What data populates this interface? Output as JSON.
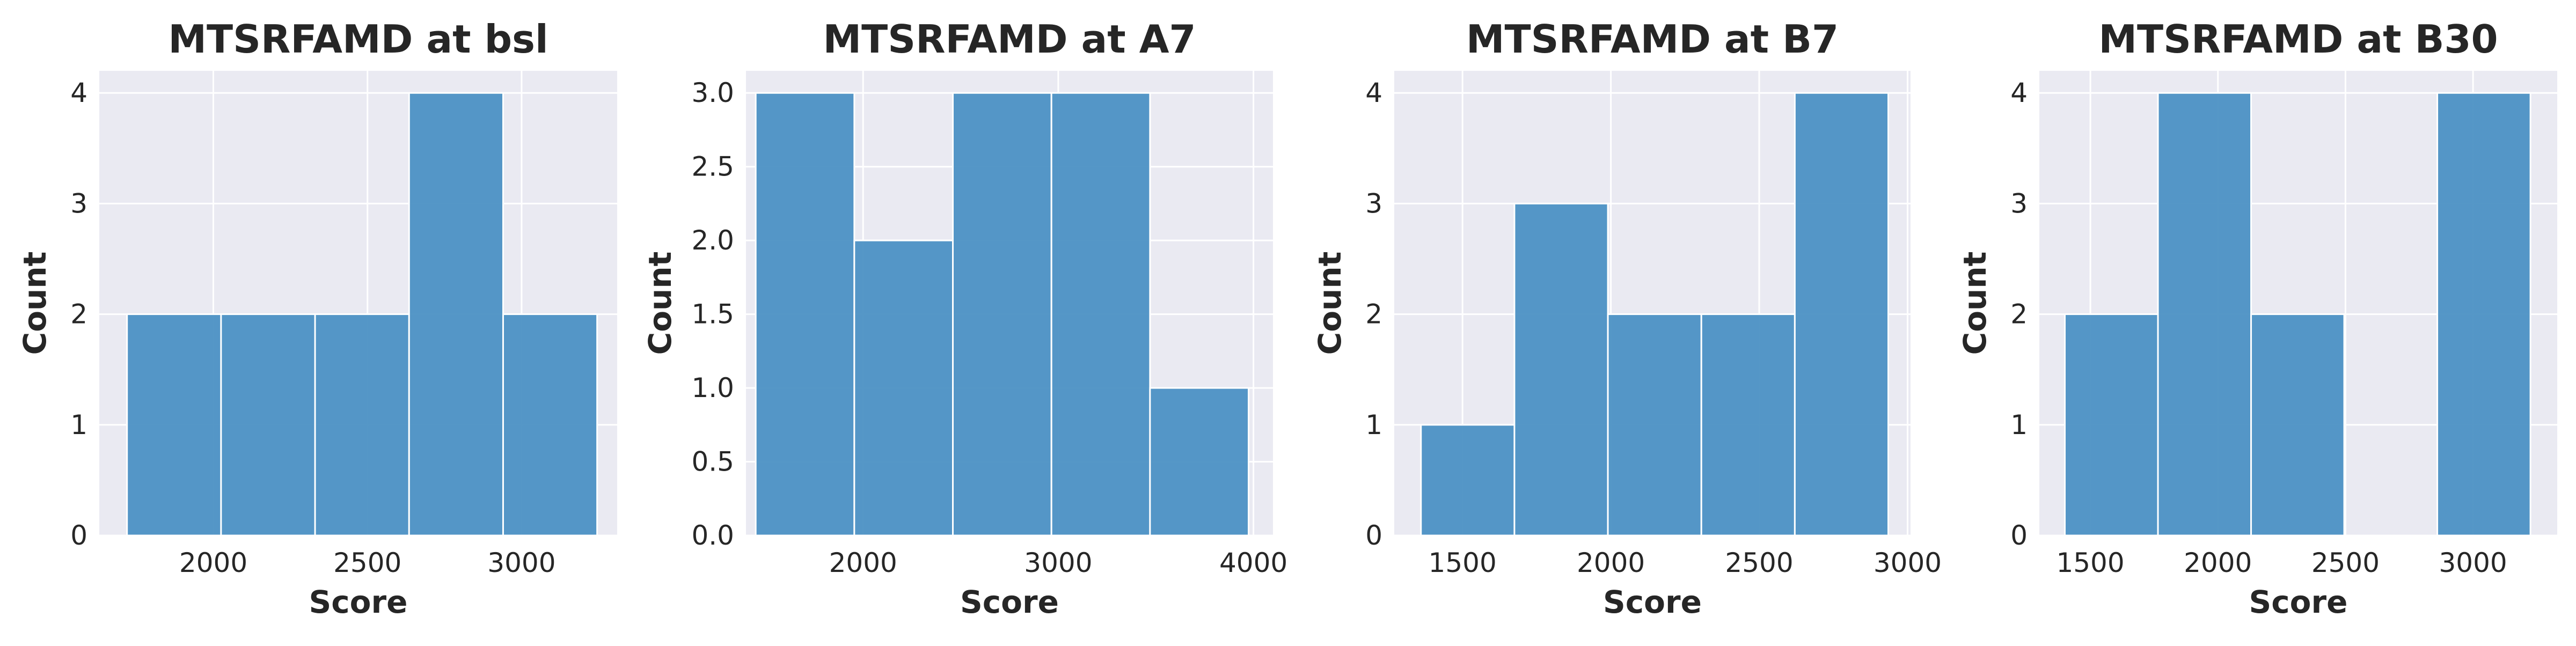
{
  "chart_data": [
    {
      "type": "bar",
      "title": "MTSRFAMD at bsl",
      "xlabel": "Score",
      "ylabel": "Count",
      "xlim": [
        1630,
        3310
      ],
      "ylim": [
        0,
        4.2
      ],
      "x_ticks": [
        2000,
        2500,
        3000
      ],
      "y_ticks": [
        0,
        1,
        2,
        3,
        4
      ],
      "y_tick_labels": [
        "0",
        "1",
        "2",
        "3",
        "4"
      ],
      "bin_edges": [
        1720,
        2025,
        2330,
        2635,
        2940,
        3245
      ],
      "values": [
        2,
        2,
        2,
        4,
        2
      ],
      "grid": true,
      "bar_color": "#4c91c4",
      "background": "#eaeaf2"
    },
    {
      "type": "bar",
      "title": "MTSRFAMD at A7",
      "xlabel": "Score",
      "ylabel": "Count",
      "xlim": [
        1400,
        4100
      ],
      "ylim": [
        0,
        3.15
      ],
      "x_ticks": [
        2000,
        3000,
        4000
      ],
      "y_ticks": [
        0,
        0.5,
        1,
        1.5,
        2,
        2.5,
        3
      ],
      "y_tick_labels": [
        "0.0",
        "0.5",
        "1.0",
        "1.5",
        "2.0",
        "2.5",
        "3.0"
      ],
      "bin_edges": [
        1450,
        1955,
        2460,
        2965,
        3470,
        3975
      ],
      "values": [
        3,
        2,
        3,
        3,
        1
      ],
      "grid": true,
      "bar_color": "#4c91c4",
      "background": "#eaeaf2"
    },
    {
      "type": "bar",
      "title": "MTSRFAMD at B7",
      "xlabel": "Score",
      "ylabel": "Count",
      "xlim": [
        1270,
        3010
      ],
      "ylim": [
        0,
        4.2
      ],
      "x_ticks": [
        1500,
        2000,
        2500,
        3000
      ],
      "y_ticks": [
        0,
        1,
        2,
        3,
        4
      ],
      "y_tick_labels": [
        "0",
        "1",
        "2",
        "3",
        "4"
      ],
      "bin_edges": [
        1360,
        1675,
        1990,
        2305,
        2620,
        2935
      ],
      "values": [
        1,
        3,
        2,
        2,
        4
      ],
      "grid": true,
      "bar_color": "#4c91c4",
      "background": "#eaeaf2"
    },
    {
      "type": "bar",
      "title": "MTSRFAMD at B30",
      "xlabel": "Score",
      "ylabel": "Count",
      "xlim": [
        1300,
        3330
      ],
      "ylim": [
        0,
        4.2
      ],
      "x_ticks": [
        1500,
        2000,
        2500,
        3000
      ],
      "y_ticks": [
        0,
        1,
        2,
        3,
        4
      ],
      "y_tick_labels": [
        "0",
        "1",
        "2",
        "3",
        "4"
      ],
      "bin_edges": [
        1400,
        1765,
        2130,
        2495,
        2860,
        3225
      ],
      "values": [
        2,
        4,
        2,
        0,
        4
      ],
      "grid": true,
      "bar_color": "#4c91c4",
      "background": "#eaeaf2"
    }
  ]
}
